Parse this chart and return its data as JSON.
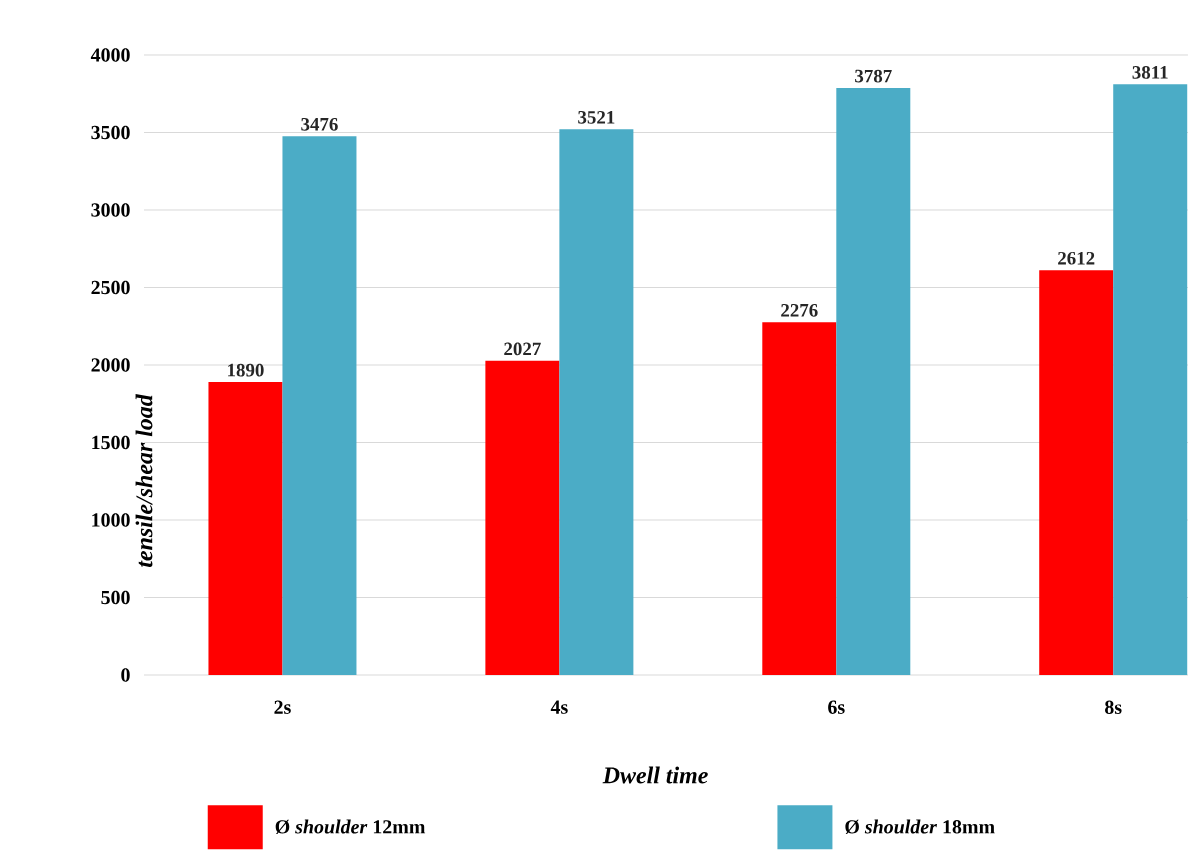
{
  "chart_data": {
    "type": "bar",
    "xlabel": "Dwell time",
    "ylabel": "tensile/shear load",
    "categories": [
      "2s",
      "4s",
      "6s",
      "8s"
    ],
    "series": [
      {
        "name": "Ø *shoulder* 12mm",
        "color": "#ff0000",
        "values": [
          1890,
          2027,
          2276,
          2612
        ]
      },
      {
        "name": "Ø *shoulder* 18mm",
        "color": "#4bacc6",
        "values": [
          3476,
          3521,
          3787,
          3811
        ]
      }
    ],
    "ylim": [
      0,
      4000
    ],
    "yticks": [
      0,
      500,
      1000,
      1500,
      2000,
      2500,
      3000,
      3500,
      4000
    ],
    "grid": "y",
    "legend": "bottom",
    "data_labels": true
  }
}
